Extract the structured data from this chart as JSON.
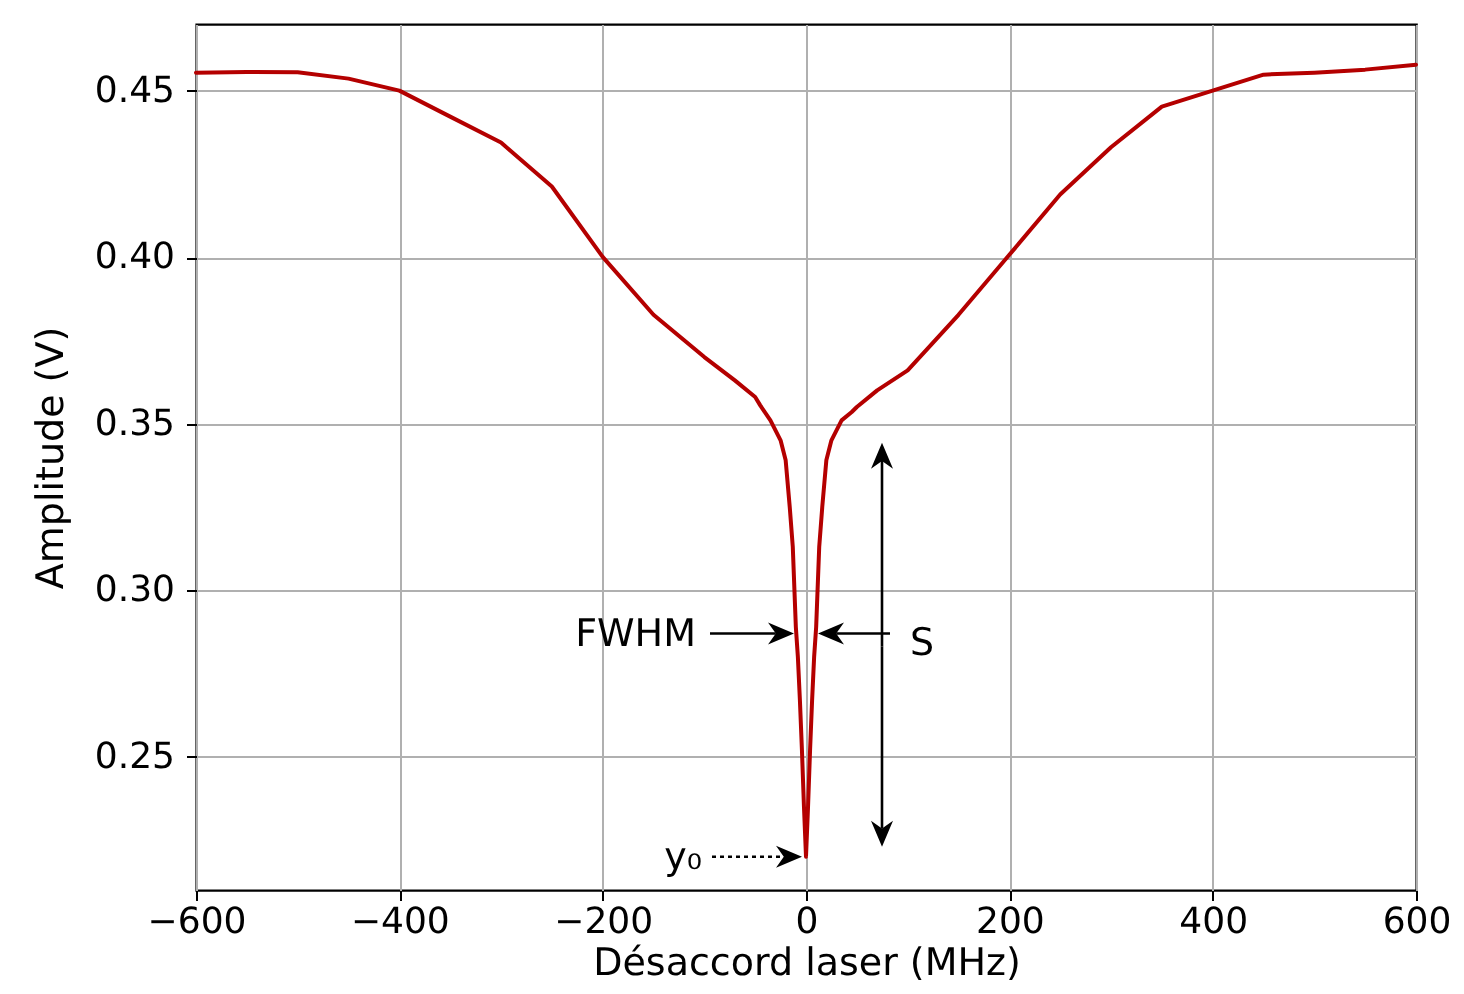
{
  "chart_data": {
    "type": "line",
    "xlabel": "Désaccord laser (MHz)",
    "ylabel": "Amplitude (V)",
    "x": [
      -600,
      -550,
      -500,
      -450,
      -400,
      -350,
      -300,
      -250,
      -200,
      -150,
      -100,
      -70,
      -50,
      -45,
      -35,
      -25,
      -20,
      -16,
      -13,
      -10,
      -8,
      -6,
      -4,
      -2,
      0,
      2,
      4,
      6,
      8,
      10,
      13,
      16,
      20,
      25,
      35,
      45,
      50,
      70,
      100,
      150,
      200,
      250,
      300,
      350,
      400,
      450,
      500,
      550,
      600
    ],
    "series": [
      {
        "color": "#b40000",
        "values": [
          0.4554,
          0.4556,
          0.4555,
          0.4536,
          0.45,
          0.4422,
          0.4344,
          0.4212,
          0.4001,
          0.3827,
          0.37,
          0.363,
          0.358,
          0.3555,
          0.351,
          0.345,
          0.339,
          0.325,
          0.313,
          0.289,
          0.28,
          0.267,
          0.252,
          0.235,
          0.22,
          0.235,
          0.252,
          0.267,
          0.28,
          0.289,
          0.313,
          0.325,
          0.339,
          0.345,
          0.351,
          0.3535,
          0.355,
          0.36,
          0.366,
          0.3827,
          0.4007,
          0.4188,
          0.433,
          0.4452,
          0.45,
          0.4548,
          0.4554,
          0.4563,
          0.4578
        ]
      }
    ],
    "xlim": [
      -600,
      600
    ],
    "xticks": [
      -600,
      -400,
      -200,
      0,
      200,
      400,
      600
    ],
    "ylim": [
      0.21,
      0.47
    ],
    "yticks": [
      0.25,
      {
        "value": 0.3,
        "label": "0.30"
      },
      0.35,
      {
        "value": 0.4,
        "label": "0.40"
      },
      0.45
    ],
    "grid": true,
    "marker": "none",
    "line_style": "solid",
    "annotations": [
      {
        "text": "FWHM",
        "x": 0,
        "y": 0.287
      },
      "S",
      {
        "text": "y₀",
        "x": 0,
        "y": 0.22
      }
    ]
  }
}
